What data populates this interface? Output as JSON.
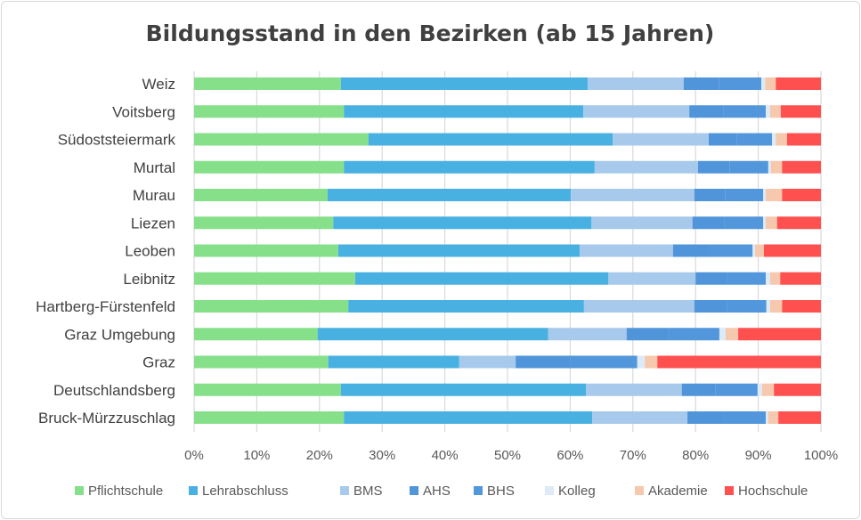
{
  "chart_data": {
    "type": "bar",
    "orientation": "horizontal",
    "stacked": "percent",
    "title": "Bildungsstand in den Bezirken (ab 15 Jahren)",
    "xlabel": "",
    "ylabel": "",
    "xlim": [
      0,
      100
    ],
    "x_ticks": [
      "0%",
      "10%",
      "20%",
      "30%",
      "40%",
      "50%",
      "60%",
      "70%",
      "80%",
      "90%",
      "100%"
    ],
    "grid": "vertical",
    "legend_position": "bottom",
    "categories": [
      "Weiz",
      "Voitsberg",
      "Südoststeiermark",
      "Murtal",
      "Murau",
      "Liezen",
      "Leoben",
      "Leibnitz",
      "Hartberg-Fürstenfeld",
      "Graz Umgebung",
      "Graz",
      "Deutschlandsberg",
      "Bruck-Mürzzuschlag"
    ],
    "series": [
      {
        "name": "Pflichtschule",
        "color": "#86e08a",
        "values": [
          23.4,
          23.9,
          27.8,
          23.9,
          21.3,
          22.2,
          23.0,
          25.7,
          24.6,
          19.7,
          21.4,
          23.4,
          23.9
        ]
      },
      {
        "name": "Lehrabschluss",
        "color": "#48b1e2",
        "values": [
          39.4,
          38.2,
          39.0,
          40.0,
          38.8,
          41.2,
          38.5,
          40.4,
          37.6,
          36.8,
          20.9,
          39.1,
          39.6
        ]
      },
      {
        "name": "BMS",
        "color": "#a7c9ec",
        "values": [
          15.3,
          16.9,
          15.3,
          16.5,
          19.7,
          16.1,
          14.9,
          13.9,
          17.6,
          12.5,
          9.0,
          15.3,
          15.2
        ]
      },
      {
        "name": "AHS",
        "color": "#5095da",
        "values": [
          5.6,
          5.5,
          4.5,
          5.0,
          4.9,
          5.1,
          5.7,
          5.0,
          5.2,
          6.7,
          8.7,
          5.4,
          5.6
        ]
      },
      {
        "name": "BHS",
        "color": "#5296dc",
        "values": [
          6.8,
          6.7,
          5.6,
          6.2,
          6.1,
          6.2,
          7.0,
          6.2,
          6.3,
          8.1,
          10.7,
          6.7,
          6.9
        ]
      },
      {
        "name": "Kolleg",
        "color": "#ddeaf7",
        "values": [
          0.6,
          0.7,
          0.6,
          0.4,
          0.4,
          0.4,
          0.4,
          0.7,
          0.6,
          1.0,
          1.2,
          0.7,
          0.4
        ]
      },
      {
        "name": "Akademie",
        "color": "#f6c8ad",
        "values": [
          1.7,
          1.7,
          1.8,
          1.8,
          2.6,
          1.8,
          1.4,
          1.6,
          1.9,
          2.0,
          2.0,
          1.9,
          1.6
        ]
      },
      {
        "name": "Hochschule",
        "color": "#ff5050",
        "values": [
          7.2,
          6.4,
          5.4,
          6.2,
          6.2,
          7.0,
          9.1,
          6.5,
          6.2,
          13.2,
          26.1,
          7.5,
          6.8
        ]
      }
    ]
  }
}
